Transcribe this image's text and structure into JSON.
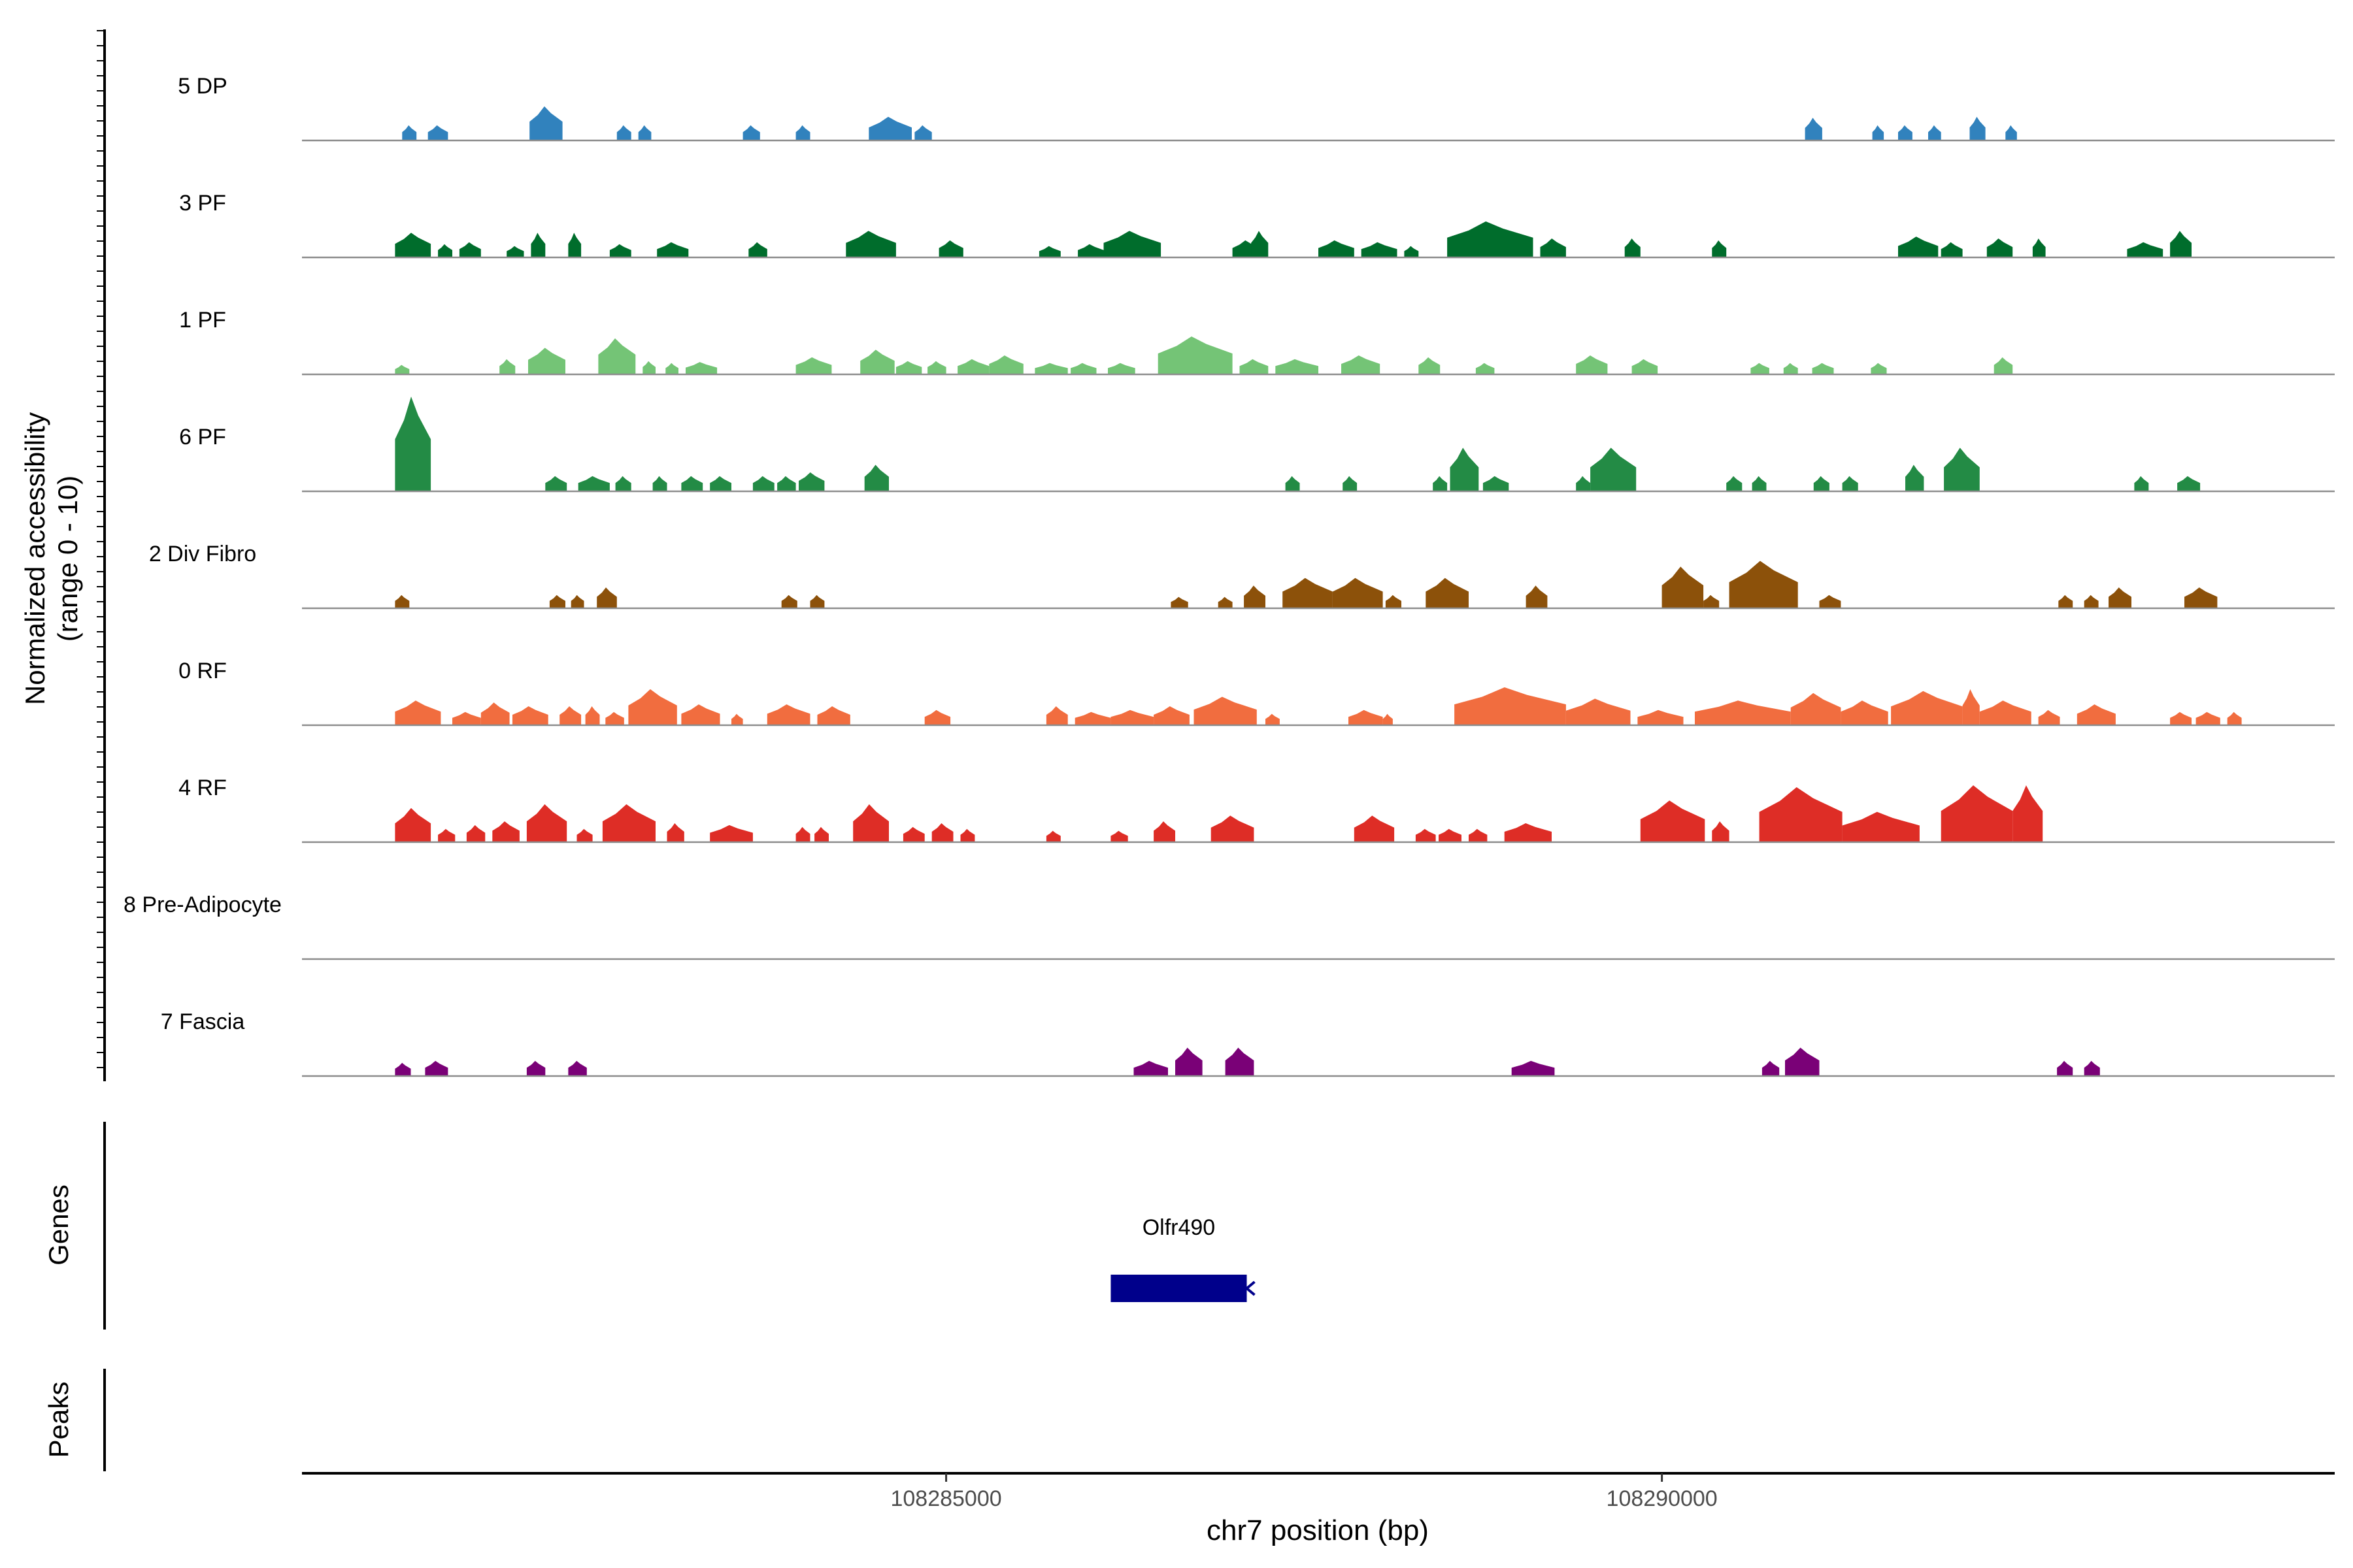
{
  "chart_data": {
    "type": "area",
    "ylabel_line1": "Normalized accessibility",
    "ylabel_line2": "(range 0 - 10)",
    "xlabel": "chr7 position (bp)",
    "xlim": [
      108280500,
      108294700
    ],
    "ylim": [
      0,
      10
    ],
    "x_ticks": [
      {
        "value": 108285000,
        "label": "108285000"
      },
      {
        "value": 108290000,
        "label": "108290000"
      }
    ],
    "grid": false,
    "tracks": [
      {
        "name": "5 DP",
        "color": "#3182bd",
        "peaks": [
          [
            108281200,
            108281300,
            1.6
          ],
          [
            108281380,
            108281520,
            1.6
          ],
          [
            108282090,
            108282320,
            3.6
          ],
          [
            108282700,
            108282800,
            1.6
          ],
          [
            108282850,
            108282940,
            1.6
          ],
          [
            108283580,
            108283700,
            1.6
          ],
          [
            108283950,
            108284050,
            1.6
          ],
          [
            108284460,
            108284760,
            2.5
          ],
          [
            108284780,
            108284900,
            1.6
          ],
          [
            108291000,
            108291120,
            2.4
          ],
          [
            108291470,
            108291550,
            1.6
          ],
          [
            108291650,
            108291750,
            1.6
          ],
          [
            108291860,
            108291950,
            1.6
          ],
          [
            108292150,
            108292260,
            2.5
          ],
          [
            108292400,
            108292480,
            1.6
          ]
        ]
      },
      {
        "name": "3 PF",
        "color": "#006d2c",
        "peaks": [
          [
            108281150,
            108281400,
            2.6
          ],
          [
            108281450,
            108281550,
            1.4
          ],
          [
            108281600,
            108281750,
            1.6
          ],
          [
            108281930,
            108282050,
            1.2
          ],
          [
            108282100,
            108282200,
            2.6
          ],
          [
            108282360,
            108282450,
            2.6
          ],
          [
            108282650,
            108282800,
            1.4
          ],
          [
            108282980,
            108283200,
            1.6
          ],
          [
            108283620,
            108283750,
            1.6
          ],
          [
            108284300,
            108284650,
            2.8
          ],
          [
            108284950,
            108285120,
            1.8
          ],
          [
            108285650,
            108285800,
            1.2
          ],
          [
            108285920,
            108286100,
            1.4
          ],
          [
            108286100,
            108286500,
            2.8
          ],
          [
            108287000,
            108287200,
            1.8
          ],
          [
            108287130,
            108287250,
            2.8
          ],
          [
            108287600,
            108287850,
            1.8
          ],
          [
            108287900,
            108288150,
            1.6
          ],
          [
            108288200,
            108288300,
            1.2
          ],
          [
            108288500,
            108289100,
            3.8
          ],
          [
            108289150,
            108289330,
            2.0
          ],
          [
            108289740,
            108289850,
            2.0
          ],
          [
            108290350,
            108290450,
            1.8
          ],
          [
            108291650,
            108291930,
            2.2
          ],
          [
            108291950,
            108292100,
            1.6
          ],
          [
            108292270,
            108292450,
            2.0
          ],
          [
            108292590,
            108292680,
            2.0
          ],
          [
            108293250,
            108293500,
            1.6
          ],
          [
            108293550,
            108293700,
            2.8
          ]
        ]
      },
      {
        "name": "1 PF",
        "color": "#74c476",
        "peaks": [
          [
            108281150,
            108281250,
            1.0
          ],
          [
            108281880,
            108281990,
            1.6
          ],
          [
            108282080,
            108282340,
            2.8
          ],
          [
            108282570,
            108282830,
            3.8
          ],
          [
            108282880,
            108282970,
            1.4
          ],
          [
            108283040,
            108283130,
            1.2
          ],
          [
            108283180,
            108283400,
            1.3
          ],
          [
            108283950,
            108284200,
            1.8
          ],
          [
            108284400,
            108284640,
            2.6
          ],
          [
            108284650,
            108284830,
            1.4
          ],
          [
            108284870,
            108285000,
            1.4
          ],
          [
            108285080,
            108285300,
            1.6
          ],
          [
            108285300,
            108285540,
            2.0
          ],
          [
            108285620,
            108285850,
            1.2
          ],
          [
            108285870,
            108286050,
            1.2
          ],
          [
            108286130,
            108286320,
            1.2
          ],
          [
            108286480,
            108287000,
            4.0
          ],
          [
            108287050,
            108287250,
            1.6
          ],
          [
            108287300,
            108287600,
            1.6
          ],
          [
            108287760,
            108288030,
            2.0
          ],
          [
            108288300,
            108288450,
            1.8
          ],
          [
            108288700,
            108288830,
            1.2
          ],
          [
            108289400,
            108289620,
            2.0
          ],
          [
            108289790,
            108289970,
            1.6
          ],
          [
            108290620,
            108290750,
            1.2
          ],
          [
            108290850,
            108290950,
            1.2
          ],
          [
            108291050,
            108291200,
            1.2
          ],
          [
            108291460,
            108291570,
            1.2
          ],
          [
            108292320,
            108292450,
            1.8
          ]
        ]
      },
      {
        "name": "6 PF",
        "color": "#238b45",
        "peaks": [
          [
            108281150,
            108281400,
            10.0
          ],
          [
            108282200,
            108282350,
            1.6
          ],
          [
            108282430,
            108282650,
            1.6
          ],
          [
            108282690,
            108282800,
            1.6
          ],
          [
            108282950,
            108283050,
            1.6
          ],
          [
            108283150,
            108283300,
            1.6
          ],
          [
            108283350,
            108283500,
            1.6
          ],
          [
            108283650,
            108283800,
            1.6
          ],
          [
            108283820,
            108283950,
            1.6
          ],
          [
            108283970,
            108284150,
            2.0
          ],
          [
            108284430,
            108284600,
            2.8
          ],
          [
            108287370,
            108287470,
            1.6
          ],
          [
            108287770,
            108287870,
            1.6
          ],
          [
            108288400,
            108288500,
            1.6
          ],
          [
            108288520,
            108288720,
            4.6
          ],
          [
            108288750,
            108288930,
            1.6
          ],
          [
            108289400,
            108289500,
            1.6
          ],
          [
            108289500,
            108289820,
            4.6
          ],
          [
            108290450,
            108290560,
            1.6
          ],
          [
            108290630,
            108290730,
            1.6
          ],
          [
            108291060,
            108291170,
            1.6
          ],
          [
            108291260,
            108291370,
            1.6
          ],
          [
            108291700,
            108291830,
            2.8
          ],
          [
            108291970,
            108292220,
            4.6
          ],
          [
            108293300,
            108293400,
            1.6
          ],
          [
            108293600,
            108293760,
            1.6
          ]
        ]
      },
      {
        "name": "2 Div Fibro",
        "color": "#8c510a",
        "peaks": [
          [
            108281150,
            108281250,
            1.4
          ],
          [
            108282230,
            108282340,
            1.4
          ],
          [
            108282380,
            108282470,
            1.4
          ],
          [
            108282560,
            108282700,
            2.2
          ],
          [
            108283850,
            108283960,
            1.4
          ],
          [
            108284050,
            108284150,
            1.4
          ],
          [
            108286570,
            108286690,
            1.2
          ],
          [
            108286900,
            108287000,
            1.2
          ],
          [
            108287080,
            108287230,
            2.4
          ],
          [
            108287350,
            108287700,
            3.2
          ],
          [
            108287700,
            108288050,
            3.2
          ],
          [
            108288070,
            108288180,
            1.4
          ],
          [
            108288350,
            108288650,
            3.2
          ],
          [
            108289050,
            108289200,
            2.4
          ],
          [
            108290000,
            108290290,
            4.4
          ],
          [
            108290290,
            108290400,
            1.4
          ],
          [
            108290470,
            108290950,
            5.0
          ],
          [
            108291100,
            108291250,
            1.4
          ],
          [
            108292770,
            108292870,
            1.4
          ],
          [
            108292950,
            108293050,
            1.4
          ],
          [
            108293120,
            108293280,
            2.2
          ],
          [
            108293650,
            108293880,
            2.2
          ]
        ]
      },
      {
        "name": "0 RF",
        "color": "#f16d3f",
        "peaks": [
          [
            108281150,
            108281470,
            2.6
          ],
          [
            108281550,
            108281750,
            1.4
          ],
          [
            108281750,
            108281950,
            2.4
          ],
          [
            108281970,
            108282220,
            2.0
          ],
          [
            108282300,
            108282450,
            2.0
          ],
          [
            108282480,
            108282580,
            2.0
          ],
          [
            108282620,
            108282750,
            1.4
          ],
          [
            108282780,
            108283120,
            3.8
          ],
          [
            108283150,
            108283420,
            2.2
          ],
          [
            108283500,
            108283580,
            1.2
          ],
          [
            108283750,
            108284050,
            2.2
          ],
          [
            108284100,
            108284330,
            2.0
          ],
          [
            108284850,
            108285030,
            1.6
          ],
          [
            108285700,
            108285850,
            2.0
          ],
          [
            108285900,
            108286150,
            1.4
          ],
          [
            108286150,
            108286450,
            1.6
          ],
          [
            108286450,
            108286700,
            2.0
          ],
          [
            108286730,
            108287170,
            3.0
          ],
          [
            108287230,
            108287330,
            1.2
          ],
          [
            108287810,
            108288050,
            1.6
          ],
          [
            108288050,
            108288120,
            1.2
          ],
          [
            108288550,
            108289330,
            4.0
          ],
          [
            108289330,
            108289780,
            2.8
          ],
          [
            108289830,
            108290150,
            1.6
          ],
          [
            108290230,
            108290900,
            2.6
          ],
          [
            108290900,
            108291250,
            3.4
          ],
          [
            108291250,
            108291580,
            2.6
          ],
          [
            108291600,
            108292100,
            3.6
          ],
          [
            108292100,
            108292220,
            3.8
          ],
          [
            108292220,
            108292580,
            2.6
          ],
          [
            108292630,
            108292780,
            1.6
          ],
          [
            108292900,
            108293170,
            2.2
          ],
          [
            108293550,
            108293700,
            1.4
          ],
          [
            108293730,
            108293900,
            1.4
          ],
          [
            108293950,
            108294050,
            1.4
          ]
        ]
      },
      {
        "name": "4 RF",
        "color": "#de2d26",
        "peaks": [
          [
            108281150,
            108281400,
            3.6
          ],
          [
            108281450,
            108281570,
            1.4
          ],
          [
            108281650,
            108281780,
            1.8
          ],
          [
            108281830,
            108282020,
            2.2
          ],
          [
            108282070,
            108282350,
            4.0
          ],
          [
            108282420,
            108282530,
            1.4
          ],
          [
            108282600,
            108282970,
            4.0
          ],
          [
            108283050,
            108283170,
            2.0
          ],
          [
            108283350,
            108283650,
            1.8
          ],
          [
            108283950,
            108284050,
            1.6
          ],
          [
            108284080,
            108284180,
            1.6
          ],
          [
            108284350,
            108284600,
            4.0
          ],
          [
            108284700,
            108284850,
            1.6
          ],
          [
            108284900,
            108285050,
            2.0
          ],
          [
            108285100,
            108285200,
            1.4
          ],
          [
            108285700,
            108285800,
            1.2
          ],
          [
            108286150,
            108286270,
            1.2
          ],
          [
            108286450,
            108286600,
            2.2
          ],
          [
            108286850,
            108287150,
            2.8
          ],
          [
            108287850,
            108288130,
            2.8
          ],
          [
            108288280,
            108288420,
            1.4
          ],
          [
            108288440,
            108288600,
            1.4
          ],
          [
            108288650,
            108288780,
            1.4
          ],
          [
            108288900,
            108289230,
            2.0
          ],
          [
            108289850,
            108290300,
            4.4
          ],
          [
            108290350,
            108290470,
            2.2
          ],
          [
            108290680,
            108291260,
            5.8
          ],
          [
            108291260,
            108291800,
            3.2
          ],
          [
            108291950,
            108292450,
            6.0
          ],
          [
            108292450,
            108292660,
            6.0
          ]
        ]
      },
      {
        "name": "8 Pre-Adipocyte",
        "color": "#999999",
        "peaks": []
      },
      {
        "name": "7 Fascia",
        "color": "#7a0177",
        "peaks": [
          [
            108281150,
            108281260,
            1.4
          ],
          [
            108281360,
            108281520,
            1.6
          ],
          [
            108282070,
            108282200,
            1.6
          ],
          [
            108282360,
            108282490,
            1.6
          ],
          [
            108286310,
            108286550,
            1.6
          ],
          [
            108286600,
            108286790,
            3.0
          ],
          [
            108286950,
            108287150,
            3.0
          ],
          [
            108288950,
            108289250,
            1.6
          ],
          [
            108290700,
            108290820,
            1.6
          ],
          [
            108290860,
            108291100,
            3.0
          ],
          [
            108292760,
            108292870,
            1.6
          ],
          [
            108292950,
            108293060,
            1.6
          ]
        ]
      }
    ],
    "genes": [
      {
        "name": "Olfr490",
        "start": 108286150,
        "end": 108287100,
        "strand": "-",
        "color": "#00008b"
      }
    ],
    "genes_label": "Genes",
    "peaks_label": "Peaks"
  }
}
